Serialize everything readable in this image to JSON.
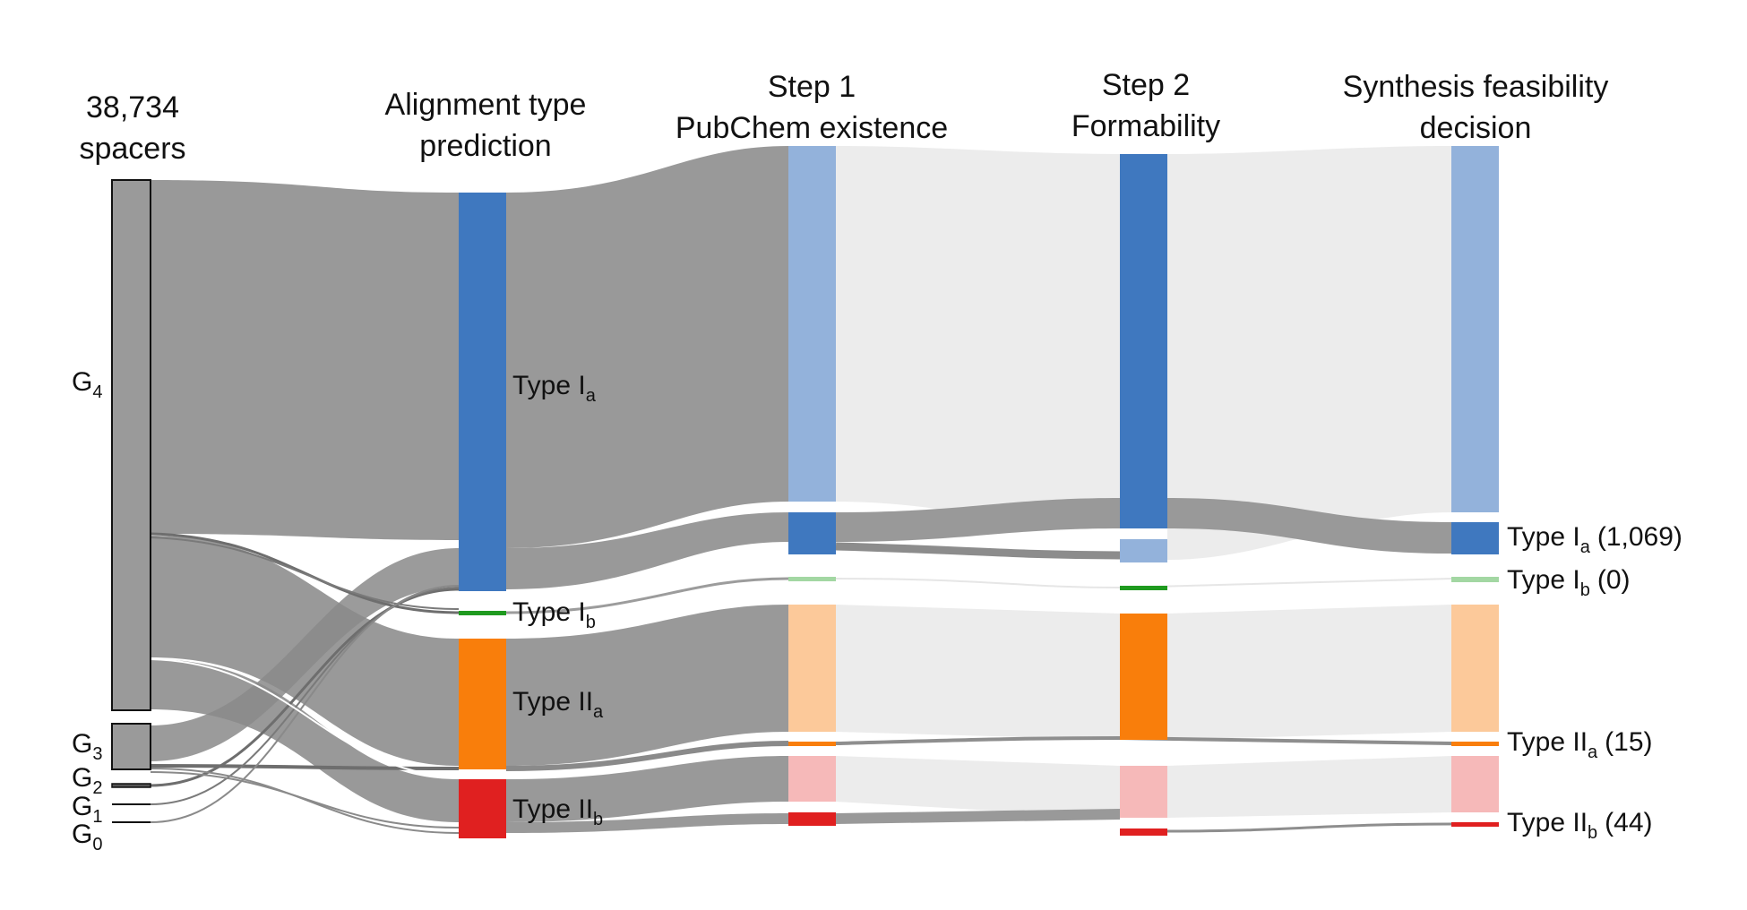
{
  "headers": {
    "col0_line1": "38,734",
    "col0_line2": "spacers",
    "col1_line1": "Alignment type",
    "col1_line2": "prediction",
    "col2_line1": "Step 1",
    "col2_line2": "PubChem existence",
    "col3_line1": "Step 2",
    "col3_line2": "Formability",
    "col4_line1": "Synthesis feasibility",
    "col4_line2": "decision"
  },
  "groups": {
    "g4": {
      "base": "G",
      "sub": "4"
    },
    "g3": {
      "base": "G",
      "sub": "3"
    },
    "g2": {
      "base": "G",
      "sub": "2"
    },
    "g1": {
      "base": "G",
      "sub": "1"
    },
    "g0": {
      "base": "G",
      "sub": "0"
    }
  },
  "types": {
    "ia": {
      "base": "Type I",
      "sub": "a"
    },
    "ib": {
      "base": "Type I",
      "sub": "b"
    },
    "iia": {
      "base": "Type II",
      "sub": "a"
    },
    "iib": {
      "base": "Type II",
      "sub": "b"
    }
  },
  "outcomes": {
    "ia": {
      "base": "Type I",
      "sub": "a",
      "count": "(1,069)"
    },
    "ib": {
      "base": "Type I",
      "sub": "b",
      "count": "(0)"
    },
    "iia": {
      "base": "Type II",
      "sub": "a",
      "count": "(15)"
    },
    "iib": {
      "base": "Type II",
      "sub": "b",
      "count": "(44)"
    }
  },
  "colors": {
    "type_ia": "#3f78bf",
    "type_ia_light": "#93b2db",
    "type_ib": "#1f9a1f",
    "type_ib_light": "#a3d7a3",
    "type_iia": "#f97e0b",
    "type_iia_light": "#fcc99a",
    "type_iib": "#e02020",
    "type_iib_light": "#f6b9b9",
    "spacer_node": "#9a9a9a",
    "flow_dark": "#999999",
    "flow_light": "#ececec",
    "flow_strand": "#6e6e6e"
  }
}
